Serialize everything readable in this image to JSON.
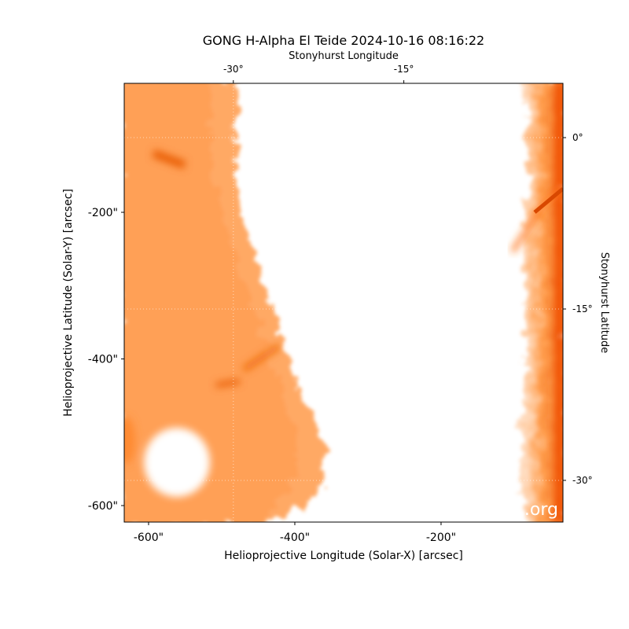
{
  "chart_data": {
    "type": "image",
    "title": "GONG H-Alpha El Teide 2024-10-16 08:16:22",
    "xlabel": "Helioprojective Longitude (Solar-X) [arcsec]",
    "ylabel": "Helioprojective Latitude (Solar-Y) [arcsec]",
    "x2label": "Stonyhurst Longitude",
    "y2label": "Stonyhurst Latitude",
    "watermark": ".org",
    "xlim": [
      -633.3,
      -33.3
    ],
    "ylim": [
      -622.5,
      -24.1
    ],
    "xticks": [
      {
        "value": -600,
        "label": "-600\""
      },
      {
        "value": -400,
        "label": "-400\""
      },
      {
        "value": -200,
        "label": "-200\""
      }
    ],
    "yticks": [
      {
        "value": -200,
        "label": "-200\""
      },
      {
        "value": -400,
        "label": "-400\""
      },
      {
        "value": -600,
        "label": "-600\""
      }
    ],
    "x2lim": [
      -39.6,
      -1.0
    ],
    "x2ticks": [
      {
        "value": -30,
        "label": "-30°"
      },
      {
        "value": -15,
        "label": "-15°"
      }
    ],
    "y2lim": [
      4.75,
      -33.65
    ],
    "y2ticks": [
      {
        "value": 0,
        "label": "0°"
      },
      {
        "value": -15,
        "label": "-15°"
      },
      {
        "value": -30,
        "label": "-30°"
      }
    ],
    "grid": true,
    "color": "#ff7a10"
  }
}
